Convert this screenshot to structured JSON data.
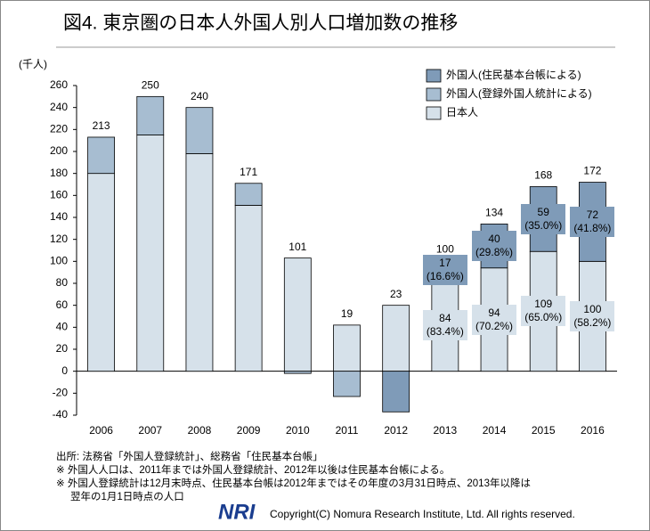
{
  "title": "図4. 東京圏の日本人外国人別人口増加数の推移",
  "chart_data": {
    "type": "bar",
    "stacked": true,
    "ylabel": "(千人)",
    "categories": [
      "2006",
      "2007",
      "2008",
      "2009",
      "2010",
      "2011",
      "2012",
      "2013",
      "2014",
      "2015",
      "2016"
    ],
    "series": [
      {
        "name": "日本人",
        "color": "#d6e1ea",
        "values": [
          180,
          215,
          198,
          151,
          103,
          42,
          60,
          84,
          94,
          109,
          100
        ],
        "value_labels": [
          null,
          null,
          null,
          null,
          null,
          null,
          null,
          "84\n(83.4%)",
          "94\n(70.2%)",
          "109\n(65.0%)",
          "100\n(58.2%)"
        ]
      },
      {
        "name": "外国人(登録外国人統計による)",
        "color": "#a7bdd1",
        "values": [
          33,
          35,
          42,
          20,
          -2,
          -23,
          null,
          null,
          null,
          null,
          null
        ]
      },
      {
        "name": "外国人(住民基本台帳による)",
        "color": "#7f9bb8",
        "values": [
          null,
          null,
          null,
          null,
          null,
          null,
          -37,
          17,
          40,
          59,
          72
        ],
        "value_labels": [
          null,
          null,
          null,
          null,
          null,
          null,
          null,
          "17\n(16.6%)",
          "40\n(29.8%)",
          "59\n(35.0%)",
          "72\n(41.8%)"
        ]
      }
    ],
    "total_labels": [
      213,
      250,
      240,
      171,
      101,
      19,
      23,
      100,
      134,
      168,
      172
    ],
    "ylim": [
      -40,
      260
    ],
    "yticks": [
      -40,
      -20,
      0,
      20,
      40,
      60,
      80,
      100,
      120,
      140,
      160,
      180,
      200,
      220,
      240,
      260
    ]
  },
  "notes": [
    "出所: 法務省「外国人登録統計」、総務省「住民基本台帳」",
    "※ 外国人人口は、2011年までは外国人登録統計、2012年以後は住民基本台帳による。",
    "※ 外国人登録統計は12月末時点、住民基本台帳は2012年まではその年度の3月31日時点、2013年以降は",
    "翌年の1月1日時点の人口"
  ],
  "logo": "NRI",
  "copyright": "Copyright(C) Nomura Research Institute, Ltd. All rights reserved."
}
